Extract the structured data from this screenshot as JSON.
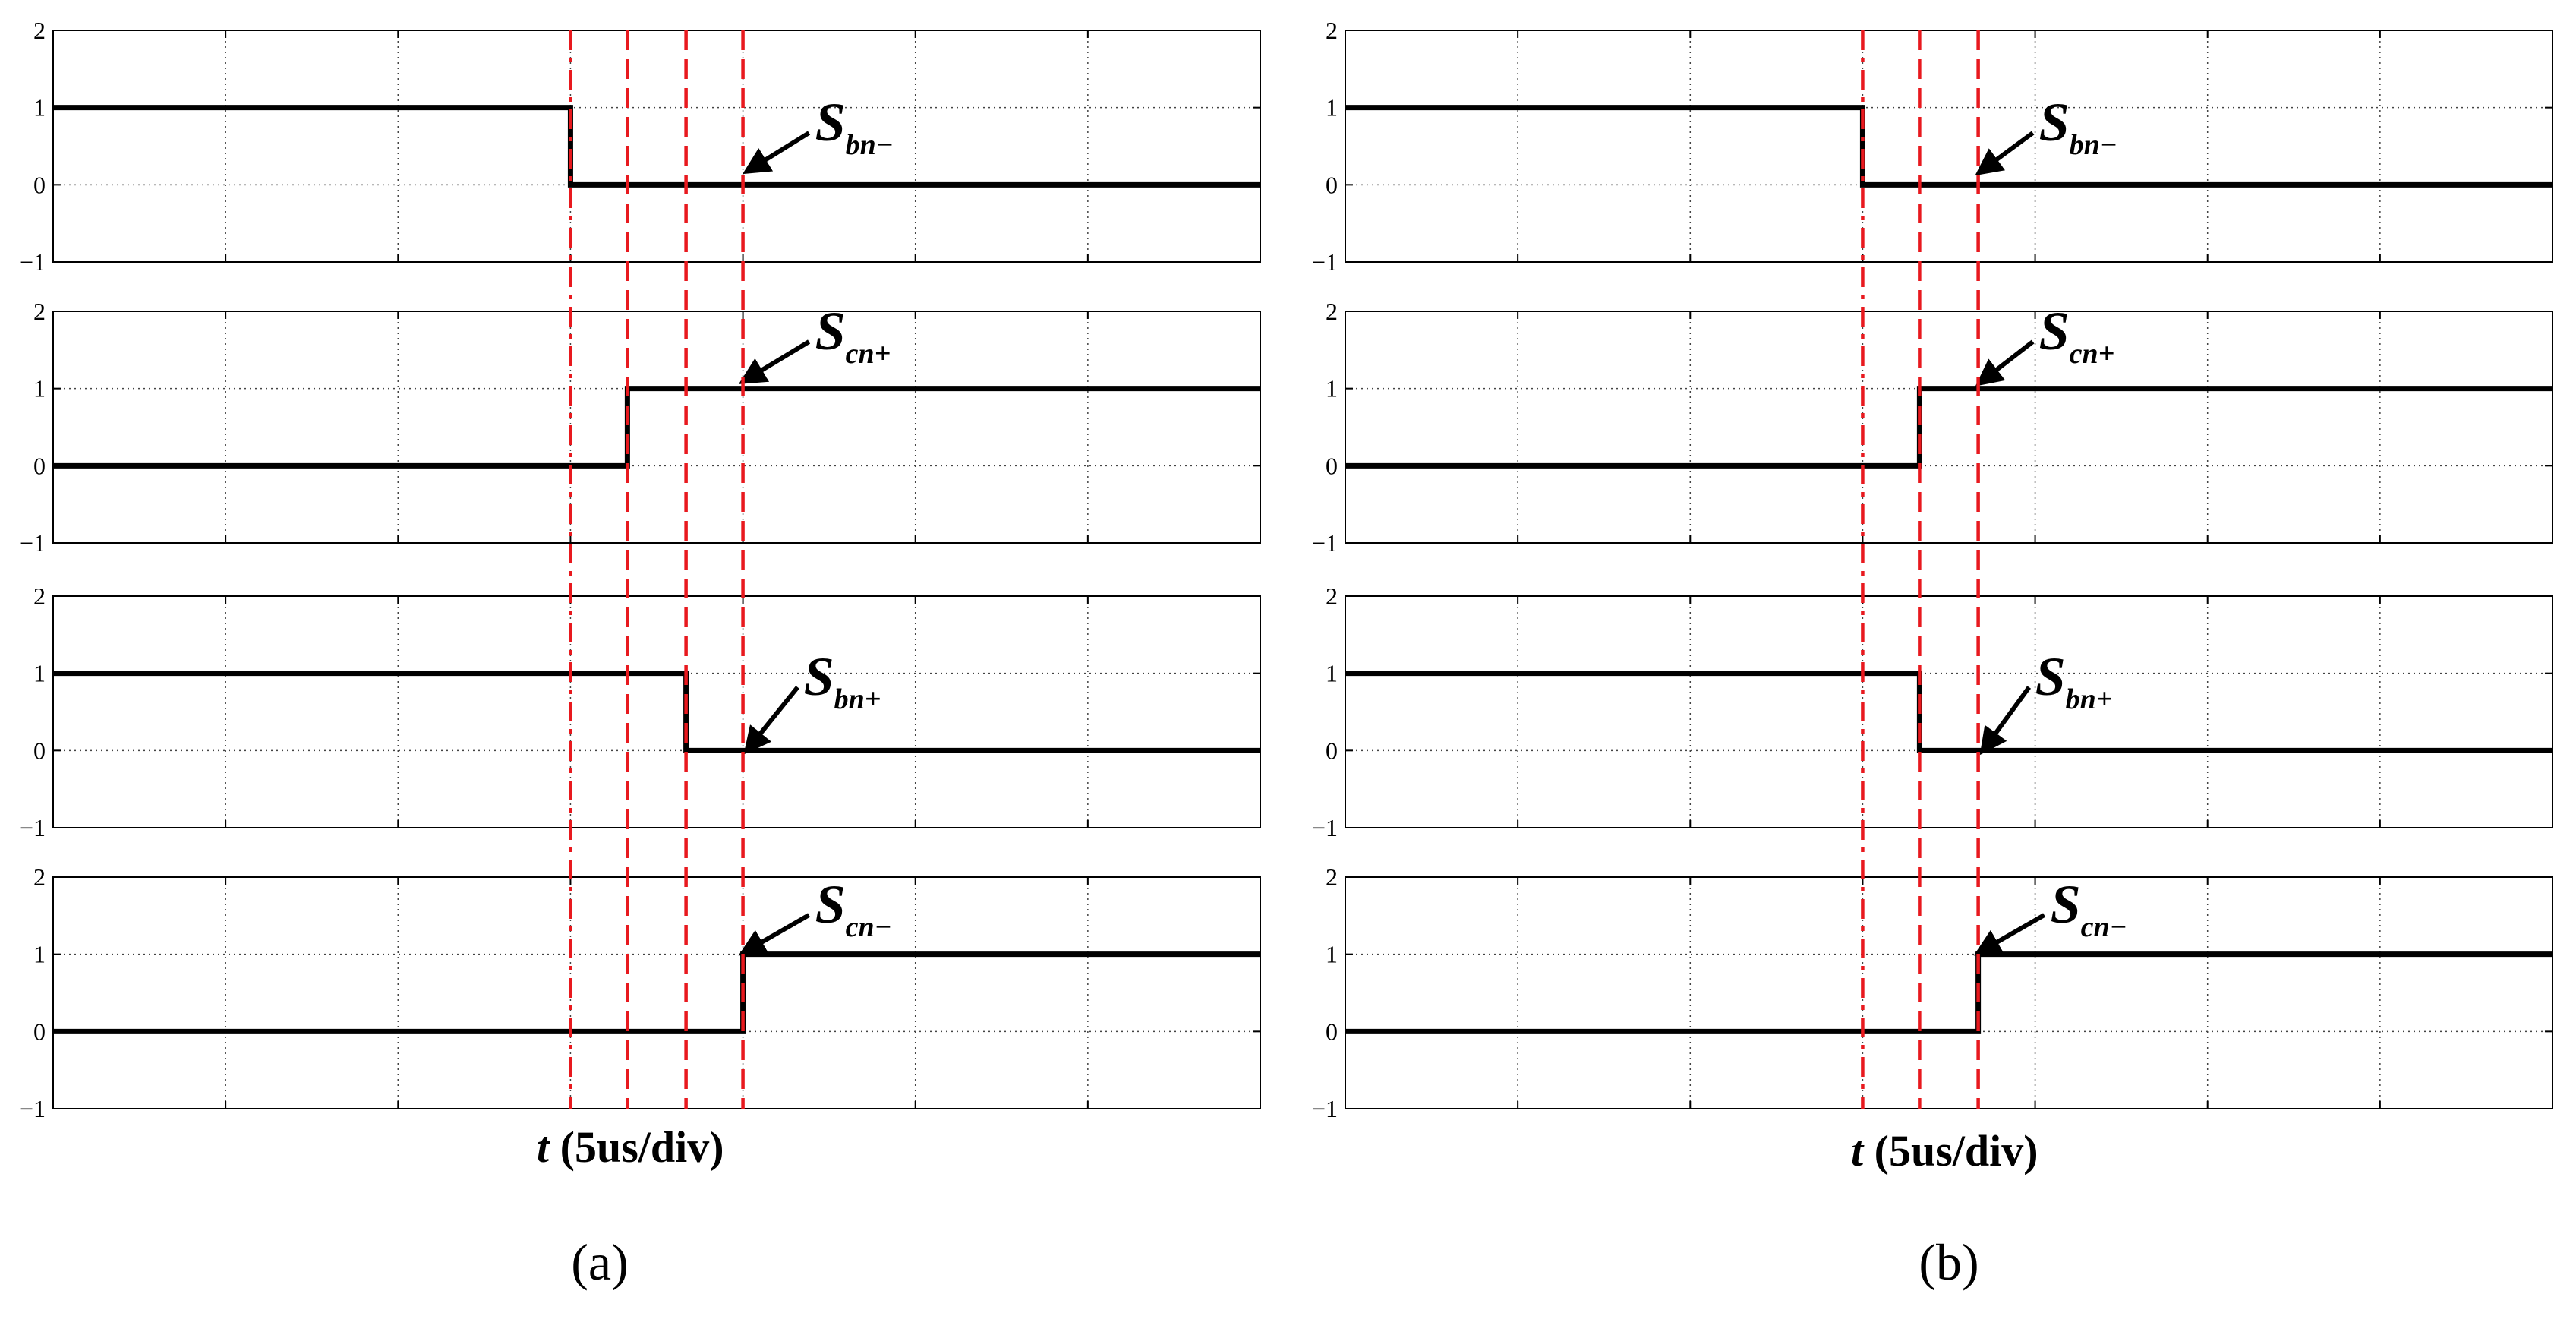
{
  "chart_data": [
    {
      "type": "line",
      "panel_label": "(a)",
      "xlabel_var": "t",
      "xlabel_unit": " (5us/div)",
      "x_divisions": 7,
      "markers": [
        3.0,
        3.33,
        3.67,
        4.0
      ],
      "marker_color": "#e8191e",
      "subplots": [
        {
          "signal": {
            "letter": "S",
            "sub": "bn−"
          },
          "ylim": [
            -1,
            2
          ],
          "yticks": [
            "2",
            "1",
            "0",
            "−1"
          ],
          "x": [
            0,
            3.0,
            3.0,
            7.0
          ],
          "y": [
            1,
            1,
            0,
            0
          ]
        },
        {
          "signal": {
            "letter": "S",
            "sub": "cn+"
          },
          "ylim": [
            -1,
            2
          ],
          "yticks": [
            "2",
            "1",
            "0",
            "−1"
          ],
          "x": [
            0,
            3.33,
            3.33,
            7.0
          ],
          "y": [
            0,
            0,
            1,
            1
          ]
        },
        {
          "signal": {
            "letter": "S",
            "sub": "bn+"
          },
          "ylim": [
            -1,
            2
          ],
          "yticks": [
            "2",
            "1",
            "0",
            "−1"
          ],
          "x": [
            0,
            3.67,
            3.67,
            7.0
          ],
          "y": [
            1,
            1,
            0,
            0
          ]
        },
        {
          "signal": {
            "letter": "S",
            "sub": "cn−"
          },
          "ylim": [
            -1,
            2
          ],
          "yticks": [
            "2",
            "1",
            "0",
            "−1"
          ],
          "x": [
            0,
            4.0,
            4.0,
            7.0
          ],
          "y": [
            0,
            0,
            1,
            1
          ]
        }
      ]
    },
    {
      "type": "line",
      "panel_label": "(b)",
      "xlabel_var": "t",
      "xlabel_unit": " (5us/div)",
      "x_divisions": 7,
      "markers": [
        3.0,
        3.33,
        3.67
      ],
      "marker_color": "#e8191e",
      "subplots": [
        {
          "signal": {
            "letter": "S",
            "sub": "bn−"
          },
          "ylim": [
            -1,
            2
          ],
          "yticks": [
            "2",
            "1",
            "0",
            "−1"
          ],
          "x": [
            0,
            3.0,
            3.0,
            7.0
          ],
          "y": [
            1,
            1,
            0,
            0
          ]
        },
        {
          "signal": {
            "letter": "S",
            "sub": "cn+"
          },
          "ylim": [
            -1,
            2
          ],
          "yticks": [
            "2",
            "1",
            "0",
            "−1"
          ],
          "x": [
            0,
            3.33,
            3.33,
            7.0
          ],
          "y": [
            0,
            0,
            1,
            1
          ]
        },
        {
          "signal": {
            "letter": "S",
            "sub": "bn+"
          },
          "ylim": [
            -1,
            2
          ],
          "yticks": [
            "2",
            "1",
            "0",
            "−1"
          ],
          "x": [
            0,
            3.33,
            3.33,
            7.0
          ],
          "y": [
            1,
            1,
            0,
            0
          ]
        },
        {
          "signal": {
            "letter": "S",
            "sub": "cn−"
          },
          "ylim": [
            -1,
            2
          ],
          "yticks": [
            "2",
            "1",
            "0",
            "−1"
          ],
          "x": [
            0,
            3.67,
            3.67,
            7.0
          ],
          "y": [
            0,
            0,
            1,
            1
          ]
        }
      ]
    }
  ]
}
